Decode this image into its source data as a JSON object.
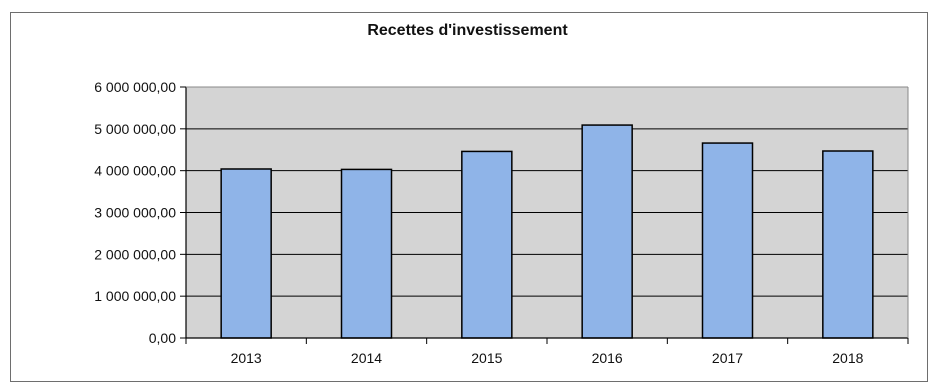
{
  "chart_data": {
    "type": "bar",
    "title": "Recettes d'investissement",
    "xlabel": "",
    "ylabel": "",
    "categories": [
      "2013",
      "2014",
      "2015",
      "2016",
      "2017",
      "2018"
    ],
    "values": [
      4040000,
      4030000,
      4460000,
      5090000,
      4660000,
      4470000
    ],
    "ylim": [
      0,
      6000000
    ],
    "yticks": [
      0,
      1000000,
      2000000,
      3000000,
      4000000,
      5000000,
      6000000
    ],
    "ytick_labels": [
      "0,00",
      "1 000 000,00",
      "2 000 000,00",
      "3 000 000,00",
      "4 000 000,00",
      "5 000 000,00",
      "6 000 000,00"
    ],
    "grid": true,
    "legend": "none",
    "colors": {
      "bar": "#8fb4e8",
      "bar_edge": "#000000",
      "plot_bg": "#d4d4d4",
      "grid": "#000000"
    }
  }
}
